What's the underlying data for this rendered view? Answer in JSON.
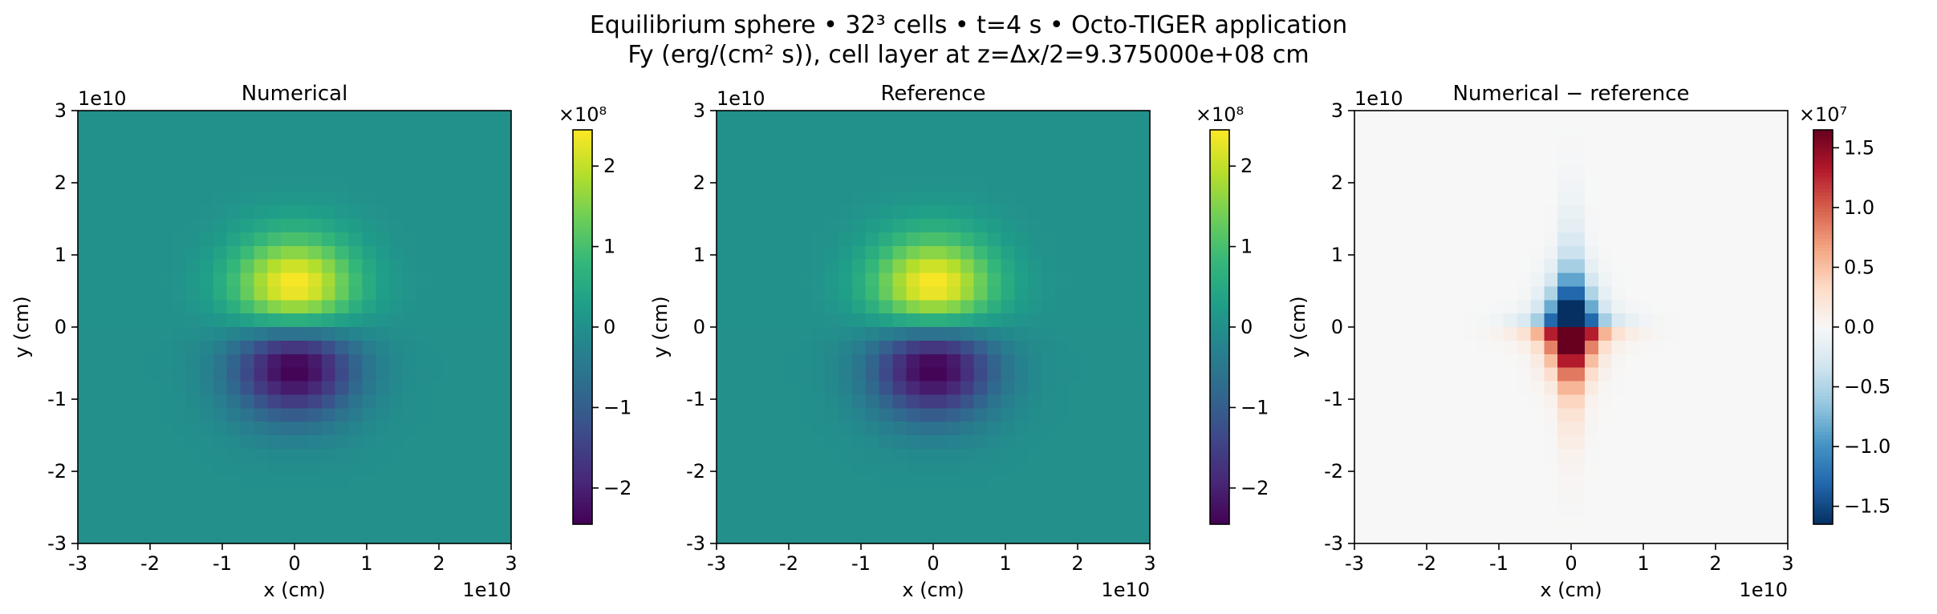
{
  "title_line1": "Equilibrium sphere • 32³ cells • t=4 s • Octo-TIGER application",
  "title_line2": "Fy (erg/(cm² s)), cell layer at z=Δx/2=9.375000e+08 cm",
  "colormaps": {
    "viridis": [
      "#440154",
      "#482878",
      "#3e4989",
      "#31688e",
      "#26828e",
      "#1f9e89",
      "#35b779",
      "#6ece58",
      "#b5de2b",
      "#fde725"
    ],
    "RdBu_r": [
      "#053061",
      "#2166ac",
      "#4393c3",
      "#92c5de",
      "#d1e5f0",
      "#f7f7f7",
      "#fddbc7",
      "#f4a582",
      "#d6604d",
      "#b2182b",
      "#67001f"
    ]
  },
  "chart_data": [
    {
      "type": "heatmap",
      "title": "Numerical",
      "xlabel": "x (cm)",
      "ylabel": "y (cm)",
      "x_offset_label": "1e10",
      "y_offset_label": "1e10",
      "xlim": [
        -30000000000.0,
        30000000000.0
      ],
      "ylim": [
        -30000000000.0,
        30000000000.0
      ],
      "xticks": [
        -3,
        -2,
        -1,
        0,
        1,
        2,
        3
      ],
      "yticks": [
        -3,
        -2,
        -1,
        0,
        1,
        2,
        3
      ],
      "grid_cells": 32,
      "field": "dipole",
      "colormap": "viridis",
      "vmin": -245000000.0,
      "vmax": 245000000.0,
      "colorbar_multiplier": "×10⁸",
      "colorbar_ticks": [
        -2,
        -1,
        0,
        1,
        2
      ],
      "colorbar_labels": [
        "−2",
        "−1",
        "0",
        "1",
        "2"
      ]
    },
    {
      "type": "heatmap",
      "title": "Reference",
      "xlabel": "x (cm)",
      "ylabel": "y (cm)",
      "x_offset_label": "1e10",
      "y_offset_label": "1e10",
      "xlim": [
        -30000000000.0,
        30000000000.0
      ],
      "ylim": [
        -30000000000.0,
        30000000000.0
      ],
      "xticks": [
        -3,
        -2,
        -1,
        0,
        1,
        2,
        3
      ],
      "yticks": [
        -3,
        -2,
        -1,
        0,
        1,
        2,
        3
      ],
      "grid_cells": 32,
      "field": "dipole",
      "colormap": "viridis",
      "vmin": -245000000.0,
      "vmax": 245000000.0,
      "colorbar_multiplier": "×10⁸",
      "colorbar_ticks": [
        -2,
        -1,
        0,
        1,
        2
      ],
      "colorbar_labels": [
        "−2",
        "−1",
        "0",
        "1",
        "2"
      ]
    },
    {
      "type": "heatmap",
      "title": "Numerical − reference",
      "xlabel": "x (cm)",
      "ylabel": "y (cm)",
      "x_offset_label": "1e10",
      "y_offset_label": "1e10",
      "xlim": [
        -30000000000.0,
        30000000000.0
      ],
      "ylim": [
        -30000000000.0,
        30000000000.0
      ],
      "xticks": [
        -3,
        -2,
        -1,
        0,
        1,
        2,
        3
      ],
      "yticks": [
        -3,
        -2,
        -1,
        0,
        1,
        2,
        3
      ],
      "grid_cells": 32,
      "field": "difference",
      "colormap": "RdBu_r",
      "vmin": -16500000.0,
      "vmax": 16500000.0,
      "colorbar_multiplier": "×10⁷",
      "colorbar_ticks": [
        -1.5,
        -1.0,
        -0.5,
        0.0,
        0.5,
        1.0,
        1.5
      ],
      "colorbar_labels": [
        "−1.5",
        "−1.0",
        "−0.5",
        "0.0",
        "0.5",
        "1.0",
        "1.5"
      ]
    }
  ]
}
